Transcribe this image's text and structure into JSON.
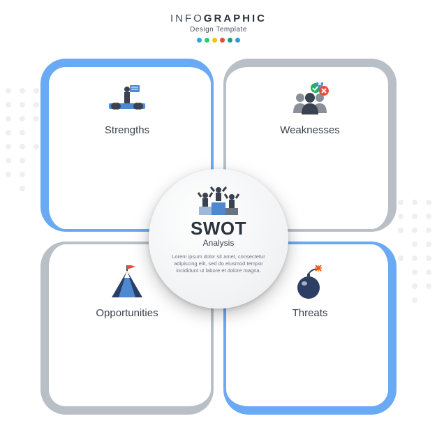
{
  "header": {
    "title_thin": "INFO",
    "title_bold": "GRAPHIC",
    "subtitle": "Design Template",
    "dot_colors": [
      "#2aa9e0",
      "#2ecc71",
      "#f1c40f",
      "#e74c3c",
      "#16a085",
      "#3498db"
    ]
  },
  "quadrants": {
    "tl": {
      "title": "Strengths",
      "border_color": "#6aa9f4",
      "icon": "strengths-icon"
    },
    "tr": {
      "title": "Weaknesses",
      "border_color": "#b9bfc6",
      "icon": "weaknesses-icon"
    },
    "bl": {
      "title": "Opportunities",
      "border_color": "#b9bfc6",
      "icon": "opportunities-icon"
    },
    "br": {
      "title": "Threats",
      "border_color": "#6aa9f4",
      "icon": "threats-icon"
    }
  },
  "center": {
    "title": "SWOT",
    "subtitle": "Analysis",
    "body": "Lorem ipsum dolor sit amet, consectetur\nadipiscing elit, sed do eiusmod tempor\nincididunt ut labore et dolore magna."
  },
  "style": {
    "type": "infographic",
    "background_color": "#ffffff",
    "panel_bg": "#ffffff",
    "panel_radius": 36,
    "border_thick": 12,
    "border_thin": 4,
    "grid_size": 510,
    "grid_gap": 14,
    "circle_diameter": 200,
    "title_color": "#3a4250",
    "header_color": "#424b57",
    "accent_blue": "#6aa9f4",
    "accent_gray": "#b9bfc6",
    "icon_palette": {
      "blue": "#4d88d0",
      "dark": "#3a4250",
      "red": "#e74c3c",
      "green": "#27ae60",
      "orange": "#f39c12",
      "navy": "#2c3e66"
    }
  }
}
